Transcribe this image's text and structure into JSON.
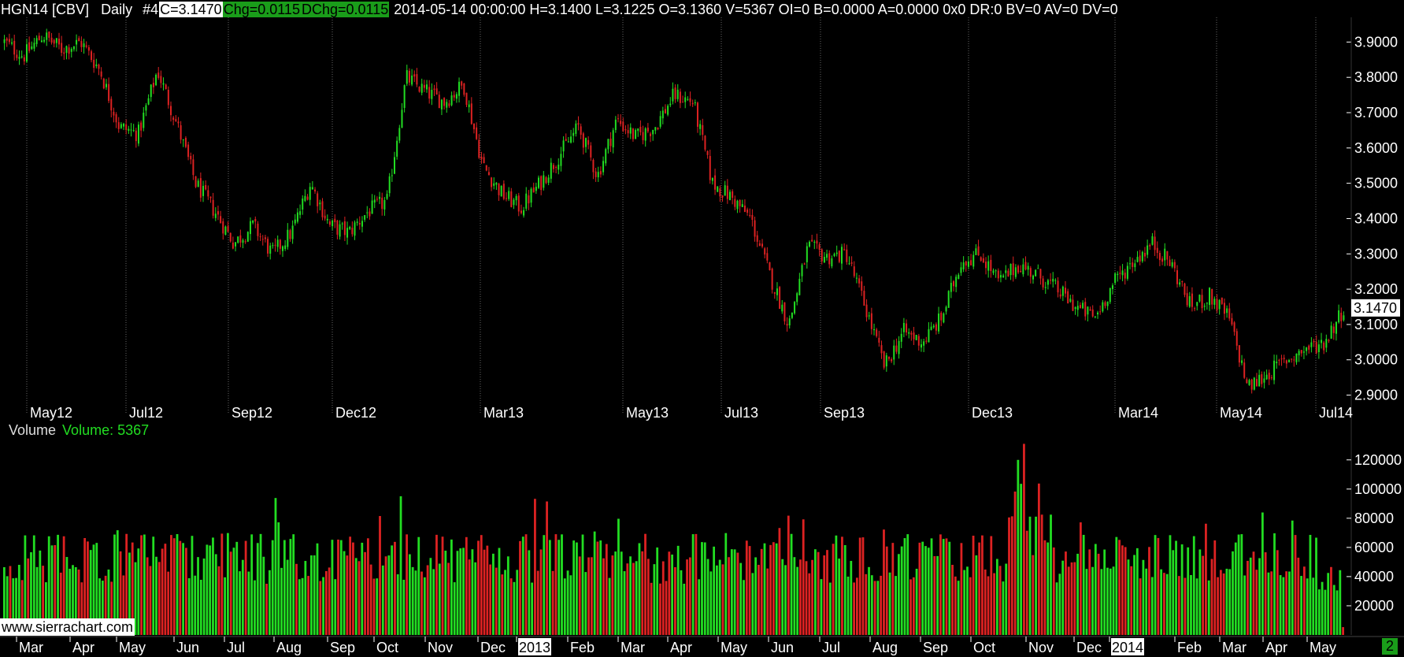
{
  "header": {
    "symbol": "HGN14 [CBV]",
    "interval": "Daily",
    "chart_num": "#4",
    "close": "C=3.1470",
    "chg": "Chg=0.0115",
    "dchg": "DChg=0.0115",
    "details": "2014-05-14 00:00:00 H=3.1400 L=3.1225 O=3.1360 V=5367 OI=0 B=0.0000 A=0.0000 0x0 DR:0 BV=0 AV=0 DV=0"
  },
  "volume_label": {
    "name": "Volume",
    "value": "Volume: 5367"
  },
  "watermark": "www.sierrachart.com",
  "page_indicator": "2",
  "colors": {
    "up": "#22dd22",
    "down": "#dd2222",
    "grid": "#666666",
    "axis_text": "#ffffff"
  },
  "chart_data": [
    {
      "type": "candlestick",
      "ylim": [
        2.87,
        3.97
      ],
      "y_ticks": [
        "3.9000",
        "3.8000",
        "3.7000",
        "3.6000",
        "3.5000",
        "3.4000",
        "3.3000",
        "3.2000",
        "3.1000",
        "3.0000",
        "2.9000"
      ],
      "y_tick_values": [
        3.9,
        3.8,
        3.7,
        3.6,
        3.5,
        3.4,
        3.3,
        3.2,
        3.1,
        3.0,
        2.9
      ],
      "last_price": "3.1470",
      "last_value": 3.147,
      "x_ticks": [
        "May12",
        "Jul12",
        "Sep12",
        "Dec12",
        "Mar13",
        "May13",
        "Jul13",
        "Sep13",
        "Dec13",
        "Mar14",
        "May14",
        "Jul14"
      ],
      "close_path": [
        3.9,
        3.86,
        3.92,
        3.88,
        3.9,
        3.82,
        3.66,
        3.64,
        3.82,
        3.67,
        3.5,
        3.42,
        3.33,
        3.38,
        3.3,
        3.36,
        3.5,
        3.38,
        3.36,
        3.42,
        3.45,
        3.8,
        3.76,
        3.73,
        3.78,
        3.55,
        3.47,
        3.43,
        3.5,
        3.58,
        3.66,
        3.52,
        3.68,
        3.63,
        3.66,
        3.75,
        3.73,
        3.5,
        3.46,
        3.4,
        3.24,
        3.1,
        3.32,
        3.29,
        3.3,
        3.15,
        2.98,
        3.08,
        3.05,
        3.12,
        3.28,
        3.3,
        3.22,
        3.27,
        3.24,
        3.2,
        3.15,
        3.12,
        3.22,
        3.28,
        3.33,
        3.27,
        3.15,
        3.18,
        3.12,
        2.92,
        2.96,
        3.0,
        3.03,
        3.05,
        3.147
      ]
    },
    {
      "type": "bar",
      "title": "Volume",
      "ylim": [
        0,
        135000
      ],
      "y_ticks": [
        "120000",
        "100000",
        "80000",
        "60000",
        "40000",
        "20000"
      ],
      "y_tick_values": [
        120000,
        100000,
        80000,
        60000,
        40000,
        20000
      ],
      "x_ticks": [
        "Mar",
        "Apr",
        "May",
        "Jun",
        "Jul",
        "Aug",
        "Sep",
        "Oct",
        "Nov",
        "Dec",
        "2013",
        "Feb",
        "Mar",
        "Apr",
        "May",
        "Jun",
        "Jul",
        "Aug",
        "Sep",
        "Oct",
        "Nov",
        "Dec",
        "2014",
        "Feb",
        "Mar",
        "Apr",
        "May"
      ],
      "highlighted_ticks": [
        "2013",
        "2014"
      ],
      "last_value": 5367
    }
  ]
}
